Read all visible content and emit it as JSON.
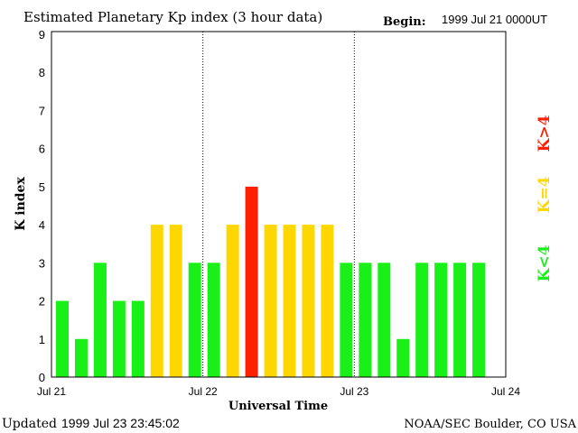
{
  "chart_data": {
    "type": "bar",
    "title": "Estimated Planetary Kp index (3 hour data)",
    "begin_label": "Begin:",
    "begin_value": "1999 Jul 21 0000UT",
    "xlabel": "Universal Time",
    "ylabel": "K index",
    "ylim": [
      0,
      9
    ],
    "yticks": [
      "0",
      "1",
      "2",
      "3",
      "4",
      "5",
      "6",
      "7",
      "8",
      "9"
    ],
    "xticks": [
      "Jul 21",
      "Jul 22",
      "Jul 23",
      "Jul 24"
    ],
    "bins_per_day": 8,
    "values": [
      2,
      1,
      3,
      2,
      2,
      4,
      4,
      3,
      3,
      4,
      5,
      4,
      4,
      4,
      4,
      3,
      3,
      3,
      1,
      3,
      3,
      3,
      3
    ],
    "legend": [
      {
        "label": "K>4",
        "color": "#ff2000"
      },
      {
        "label": "K=4",
        "color": "#ffd700"
      },
      {
        "label": "K<4",
        "color": "#18f018"
      }
    ],
    "footer_updated_label": "Updated",
    "footer_updated_value": "1999 Jul 23 23:45:02",
    "footer_source": "NOAA/SEC Boulder, CO USA"
  }
}
